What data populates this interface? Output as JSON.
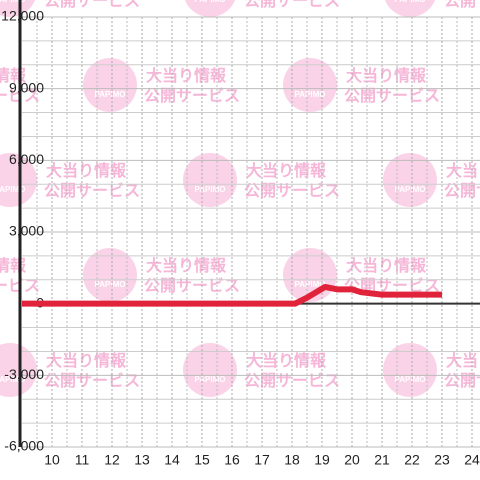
{
  "chart_data": {
    "type": "line",
    "watermark": {
      "logo": "PAPIMO",
      "line1": "大当り情報",
      "line2": "公開サービス"
    },
    "x": [
      9,
      18.1,
      18.5,
      19.1,
      19.5,
      20,
      20.3,
      21,
      22,
      23
    ],
    "series": [
      {
        "color": "#e0223a",
        "values": [
          0,
          0,
          250,
          700,
          600,
          600,
          480,
          380,
          380,
          380
        ]
      }
    ],
    "xlim": [
      9,
      24.3
    ],
    "xticks": [
      10,
      11,
      12,
      13,
      14,
      15,
      16,
      17,
      18,
      19,
      20,
      21,
      22,
      23,
      24
    ],
    "x_minor_ticks": [
      9.5,
      10.5,
      11.5,
      12.5,
      13.5,
      14.5,
      15.5,
      16.5,
      17.5,
      18.5,
      19.5,
      20.5,
      21.5,
      22.5,
      23.5
    ],
    "ylim": [
      -6000,
      12000
    ],
    "yticks": [
      {
        "value": -6000,
        "label": "-6,000"
      },
      {
        "value": -3000,
        "label": "-3,000"
      },
      0,
      {
        "value": 3000,
        "label": "3,000"
      },
      {
        "value": 6000,
        "label": "6,000"
      },
      {
        "value": 9000,
        "label": "9,000"
      },
      {
        "value": 12000,
        "label": "12,000"
      }
    ],
    "y_minor_ticks": [
      -5000,
      -4000,
      -2000,
      -1000,
      1000,
      2000,
      4000,
      5000,
      7000,
      8000,
      10000,
      11000
    ],
    "grid": true
  }
}
